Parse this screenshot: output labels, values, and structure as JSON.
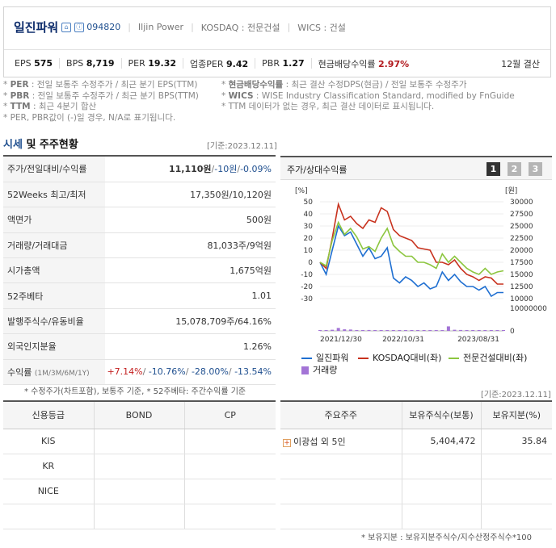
{
  "header": {
    "company_name": "일진파워",
    "stock_code": "094820",
    "english_name": "Iljin Power",
    "market": "KOSDAQ : 전문건설",
    "wics": "WICS : 건설",
    "stats": [
      {
        "label": "EPS",
        "value": "575"
      },
      {
        "label": "BPS",
        "value": "8,719"
      },
      {
        "label": "PER",
        "value": "19.32"
      },
      {
        "label": "업종PER",
        "value": "9.42"
      },
      {
        "label": "PBR",
        "value": "1.27"
      },
      {
        "label": "현금배당수익률",
        "value": "2.97%"
      }
    ],
    "settlement": "12월 결산"
  },
  "notes": {
    "line1_left_label": "PER",
    "line1_left": ": 전일 보통주 수정주가 / 최근 분기 EPS(TTM)",
    "line2_left_label": "PBR",
    "line2_left": ": 전일 보통주 수정주가 / 최근 분기 BPS(TTM)",
    "line3_left_label": "TTM",
    "line3_left": ": 최근 4분기 합산",
    "line4_left": "* PER, PBR값이 (-)일 경우, N/A로 표기됩니다.",
    "line1_right_label": "현금배당수익률",
    "line1_right": ": 최근 결산 수정DPS(현금) / 전일 보통주 수정주가",
    "line2_right_label": "WICS",
    "line2_right": ": WISE Industry Classification Standard, modified by FnGuide",
    "line3_right": "* TTM 데이터가 없는 경우, 최근 결산 데이터로 표시됩니다."
  },
  "section": {
    "title_blue": "시세",
    "title_rest": " 및 주주현황",
    "base_date": "[기준:2023.12.11]"
  },
  "market": {
    "price_label": "주가/전일대비/수익률",
    "price": "11,110원",
    "change": "-10원",
    "change_rate": "-0.09%",
    "rows": [
      {
        "k": "52Weeks 최고/최저",
        "v": "17,350원/10,120원"
      },
      {
        "k": "액면가",
        "v": "500원"
      },
      {
        "k": "거래량/거래대금",
        "v": "81,033주/9억원"
      },
      {
        "k": "시가총액",
        "v": "1,675억원"
      },
      {
        "k": "52주베타",
        "v": "1.01"
      },
      {
        "k": "발행주식수/유동비율",
        "v": "15,078,709주/64.16%"
      },
      {
        "k": "외국인지분율",
        "v": "1.26%"
      }
    ],
    "returns_label": "수익률",
    "returns_periods": "(1M/3M/6M/1Y)",
    "r1": "+7.14%",
    "r2": "-10.76%",
    "r3": "-28.00%",
    "r4": "-13.54%",
    "footnote": "* 수정주가(차트포함), 보통주 기준, * 52주베타: 주간수익률 기준"
  },
  "chart_panel": {
    "title": "주가/상대수익률",
    "period_buttons": [
      "1",
      "2",
      "3"
    ],
    "legend": [
      "일진파워",
      "KOSDAQ대비(좌)",
      "전문건설대비(좌)",
      "거래량"
    ]
  },
  "chart_data": {
    "type": "line",
    "title": "주가/상대수익률",
    "left_axis_label": "[%]",
    "right_axis_label": "[원]",
    "left_ticks": [
      "50",
      "40",
      "30",
      "20",
      "10",
      "0",
      "-10",
      "-20",
      "-30"
    ],
    "right_ticks": [
      "30000",
      "27500",
      "25000",
      "22500",
      "20000",
      "17500",
      "15000",
      "12500",
      "10000"
    ],
    "volume_ticks": [
      "10000000",
      "0"
    ],
    "ylim_left": [
      -30,
      50
    ],
    "ylim_right": [
      10000,
      30000
    ],
    "x_tick_labels": [
      "2021/12/30",
      "2022/10/31",
      "2023/08/31"
    ],
    "series": [
      {
        "name": "일진파워",
        "color": "#1f6fd1",
        "axis": "left",
        "values": [
          0,
          -10,
          10,
          30,
          22,
          25,
          15,
          5,
          12,
          3,
          5,
          12,
          -13,
          -17,
          -12,
          -15,
          -20,
          -17,
          -22,
          -20,
          -8,
          -15,
          -10,
          -16,
          -20,
          -20,
          -23,
          -20,
          -28,
          -25,
          -25
        ]
      },
      {
        "name": "KOSDAQ대비(좌)",
        "color": "#c8321e",
        "axis": "left",
        "values": [
          0,
          -5,
          20,
          48,
          35,
          38,
          32,
          28,
          35,
          33,
          45,
          42,
          27,
          22,
          20,
          18,
          12,
          11,
          10,
          0,
          0,
          -2,
          2,
          -5,
          -10,
          -12,
          -15,
          -12,
          -13,
          -18,
          -18
        ]
      },
      {
        "name": "전문건설대비(좌)",
        "color": "#8cc63f",
        "axis": "left",
        "values": [
          0,
          -3,
          18,
          33,
          23,
          28,
          21,
          11,
          13,
          9,
          20,
          28,
          14,
          9,
          5,
          5,
          0,
          0,
          -2,
          -5,
          7,
          0,
          5,
          0,
          -5,
          -8,
          -10,
          -5,
          -10,
          -8,
          -7
        ]
      },
      {
        "name": "거래량",
        "color": "#a374d6",
        "axis": "volume",
        "type": "bar",
        "values": [
          0.03,
          0.03,
          0.05,
          0.13,
          0.07,
          0.06,
          0.02,
          0.03,
          0.04,
          0.02,
          0.03,
          0.03,
          0.03,
          0.02,
          0.02,
          0.03,
          0.02,
          0.02,
          0.02,
          0.02,
          0.02,
          0.2,
          0.05,
          0.04,
          0.02,
          0.02,
          0.02,
          0.01,
          0.02,
          0.02,
          0.01
        ]
      }
    ]
  },
  "credit": {
    "base_date": "[기준:2023.12.11]",
    "headers": [
      "신용등급",
      "BOND",
      "CP"
    ],
    "rows": [
      "KIS",
      "KR",
      "NICE",
      ""
    ]
  },
  "shareholders": {
    "headers": [
      "주요주주",
      "보유주식수(보통)",
      "보유지분(%)"
    ],
    "rows": [
      {
        "name": "이광섭 외 5인",
        "shares": "5,404,472",
        "pct": "35.84"
      }
    ],
    "footnote": "* 보유지분 : 보유지분주식수/지수산정주식수*100"
  }
}
